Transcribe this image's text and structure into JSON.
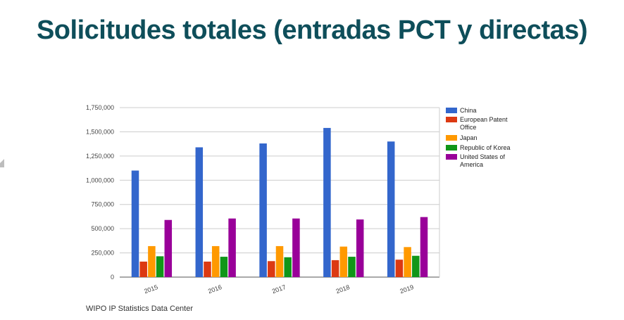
{
  "title": "Solicitudes totales (entradas PCT y directas)",
  "source": "WIPO IP Statistics Data Center",
  "chart_data": {
    "type": "bar",
    "title": "",
    "xlabel": "",
    "ylabel": "",
    "categories": [
      "2015",
      "2016",
      "2017",
      "2018",
      "2019"
    ],
    "ylim": [
      0,
      1750000
    ],
    "yticks": [
      0,
      250000,
      500000,
      750000,
      1000000,
      1250000,
      1500000,
      1750000
    ],
    "ytick_labels": [
      "0",
      "250,000",
      "500,000",
      "750,000",
      "1,000,000",
      "1,250,000",
      "1,500,000",
      "1,750,000"
    ],
    "grid": true,
    "legend_position": "right",
    "series": [
      {
        "name": "China",
        "color": "#3366cc",
        "values": [
          1100000,
          1340000,
          1380000,
          1540000,
          1400000
        ]
      },
      {
        "name": "European Patent Office",
        "legend_lines": [
          "European Patent",
          "Office"
        ],
        "color": "#dc3912",
        "values": [
          160000,
          160000,
          165000,
          175000,
          180000
        ]
      },
      {
        "name": "Japan",
        "color": "#ff9900",
        "values": [
          320000,
          320000,
          320000,
          315000,
          310000
        ]
      },
      {
        "name": "Republic of Korea",
        "color": "#109618",
        "values": [
          215000,
          210000,
          205000,
          210000,
          220000
        ]
      },
      {
        "name": "United States of America",
        "legend_lines": [
          "United States of",
          "America"
        ],
        "color": "#990099",
        "values": [
          590000,
          605000,
          605000,
          595000,
          620000
        ]
      }
    ]
  }
}
